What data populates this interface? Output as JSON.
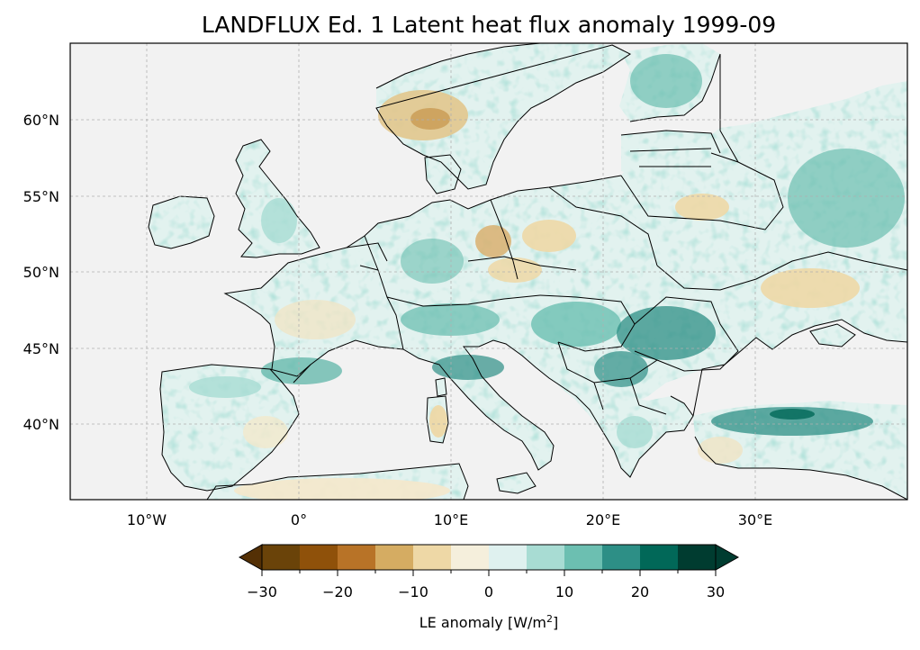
{
  "title": "LANDFLUX Ed. 1 Latent heat flux anomaly 1999-09",
  "map": {
    "lon_range": [
      -15,
      40
    ],
    "lat_range": [
      35,
      65
    ],
    "lat_ticks": [
      {
        "value": 40,
        "label": "40°N"
      },
      {
        "value": 45,
        "label": "45°N"
      },
      {
        "value": 50,
        "label": "50°N"
      },
      {
        "value": 55,
        "label": "55°N"
      },
      {
        "value": 60,
        "label": "60°N"
      }
    ],
    "lon_ticks": [
      {
        "value": -10,
        "label": "10°W"
      },
      {
        "value": 0,
        "label": "0°"
      },
      {
        "value": 10,
        "label": "10°E"
      },
      {
        "value": 20,
        "label": "20°E"
      },
      {
        "value": 30,
        "label": "30°E"
      }
    ],
    "gridlines": true,
    "ocean_color": "#f2f2f2",
    "projection": "PlateCarree"
  },
  "colorbar": {
    "label_prefix": "LE anomaly [W/m",
    "label_sup": "2",
    "label_suffix": "]",
    "levels": [
      -30,
      -25,
      -20,
      -15,
      -10,
      -5,
      0,
      5,
      10,
      15,
      20,
      25,
      30
    ],
    "tick_labels": [
      {
        "value": -30,
        "label": "−30"
      },
      {
        "value": -20,
        "label": "−20"
      },
      {
        "value": -10,
        "label": "−10"
      },
      {
        "value": 0,
        "label": "0"
      },
      {
        "value": 10,
        "label": "10"
      },
      {
        "value": 20,
        "label": "20"
      },
      {
        "value": 30,
        "label": "30"
      }
    ],
    "colors": [
      "#6a4309",
      "#8f510a",
      "#b87327",
      "#d5ac62",
      "#eed8a6",
      "#f5efdc",
      "#dff1ef",
      "#a8dcd3",
      "#6cbfb1",
      "#2d8f86",
      "#016858",
      "#003c30"
    ],
    "under_color": "#543005",
    "over_color": "#003c30",
    "extend": "both"
  }
}
